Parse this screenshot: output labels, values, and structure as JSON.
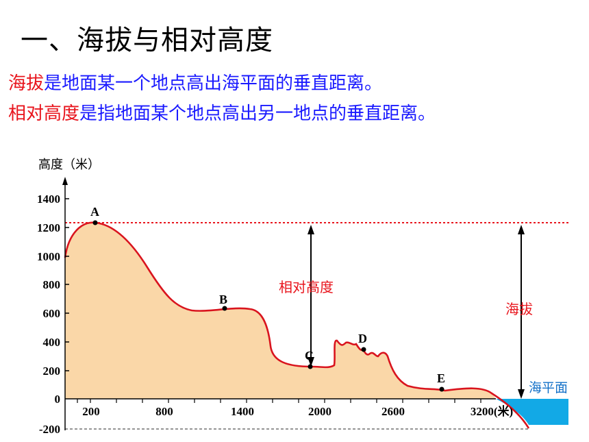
{
  "title": "一、海拔与相对高度",
  "definitions": {
    "altitude_term": "海拔",
    "altitude_text": "是地面某一个地点高出海平面的垂直距离。",
    "relative_term": "相对高度",
    "relative_text": "是指地面某个地点高出另一地点的垂直距离。"
  },
  "chart": {
    "y_axis_title": "高度（米）",
    "y_ticks": [
      "1400",
      "1200",
      "1000",
      "800",
      "600",
      "400",
      "200",
      "0",
      "-200"
    ],
    "x_ticks": [
      "200",
      "800",
      "1400",
      "2000",
      "2600",
      "3200(米)"
    ],
    "points": [
      "A",
      "B",
      "C",
      "D",
      "E"
    ],
    "relative_height_label": "相对高度",
    "altitude_label": "海拔",
    "sea_level_label": "海平面",
    "colors": {
      "terrain_fill": "#fad7a8",
      "terrain_line": "#d9141e",
      "sea": "#12a9e6",
      "label_red": "#e8141c",
      "label_sea": "#1270c8"
    }
  }
}
